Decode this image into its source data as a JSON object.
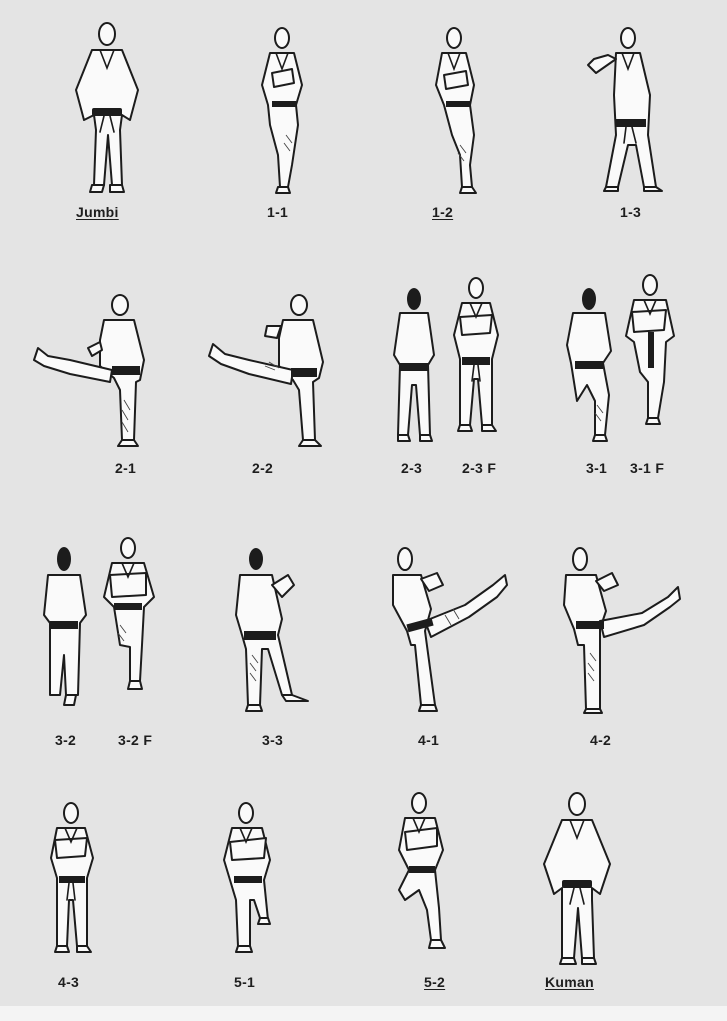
{
  "labels": {
    "jumbi": "Jumbi",
    "l1_1": "1-1",
    "l1_2": "1-2",
    "l1_3": "1-3",
    "l2_1": "2-1",
    "l2_2": "2-2",
    "l2_3": "2-3",
    "l2_3f": "2-3 F",
    "l3_1": "3-1",
    "l3_1f": "3-1 F",
    "l3_2": "3-2",
    "l3_2f": "3-2 F",
    "l3_3": "3-3",
    "l4_1": "4-1",
    "l4_2": "4-2",
    "l4_3": "4-3",
    "l5_1": "5-1",
    "l5_2": "5-2",
    "kuman": "Kuman"
  }
}
